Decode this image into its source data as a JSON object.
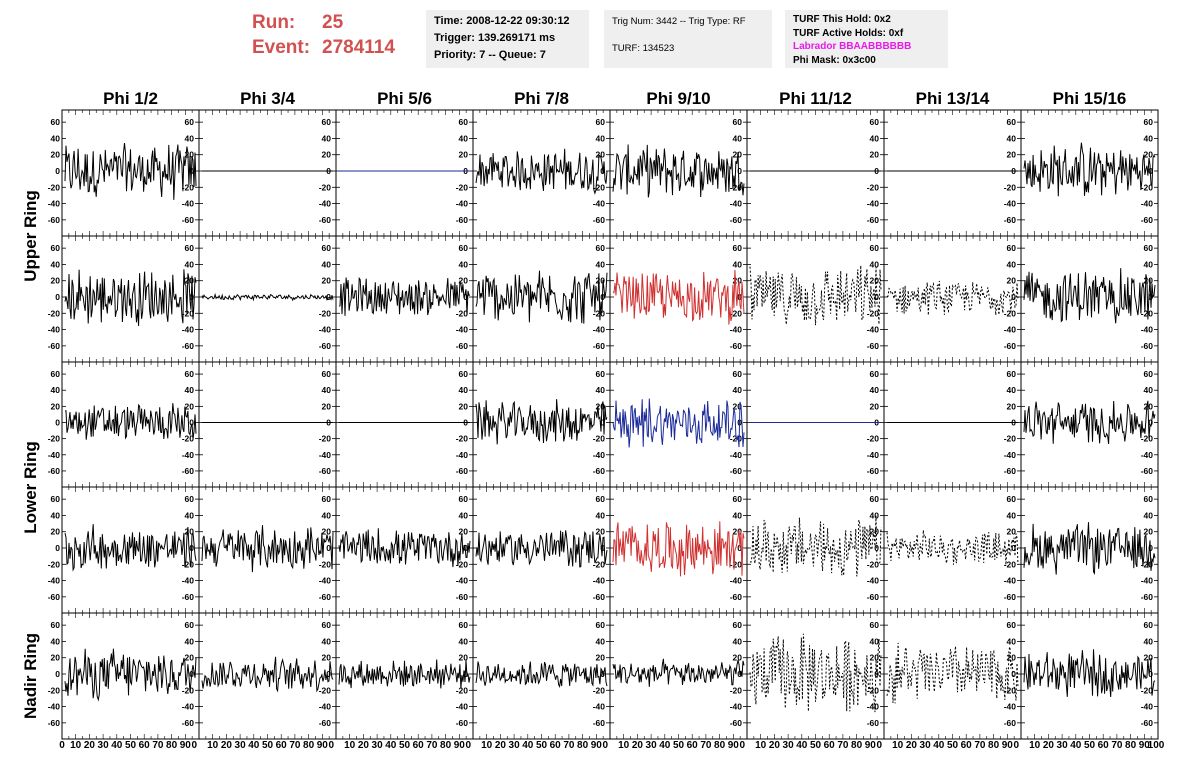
{
  "header": {
    "run_label": "Run:",
    "run_value": "25",
    "event_label": "Event:",
    "event_value": "2784114",
    "time": "Time: 2008-12-22 09:30:12",
    "trigger": "Trigger: 139.269171 ms",
    "priority": "Priority: 7 -- Queue: 7",
    "trig_num": "Trig Num: 3442 -- Trig Type: RF",
    "turf": "TURF: 134523",
    "turf_this_hold": "TURF This Hold: 0x2",
    "turf_active_holds": "TURF Active Holds: 0xf",
    "labrador": "Labrador BBAABBBBBB",
    "phi_mask": "Phi Mask: 0x3c00"
  },
  "colors": {
    "header_red": "#d35050",
    "labrador_magenta": "#e81aea",
    "trace_black": "#000000",
    "trace_red": "#d03030",
    "trace_blue": "#1a2a9a",
    "info_bg": "#efefef"
  },
  "chart_data": {
    "type": "line",
    "columns": [
      "Phi 1/2",
      "Phi 3/4",
      "Phi 5/6",
      "Phi 7/8",
      "Phi 9/10",
      "Phi 11/12",
      "Phi 13/14",
      "Phi 15/16"
    ],
    "rows": [
      "Upper Ring",
      "Upper Ring",
      "Lower Ring",
      "Lower Ring",
      "Nadir Ring"
    ],
    "row_labels": [
      "Upper Ring",
      "Lower Ring",
      "Nadir Ring"
    ],
    "ylim": [
      -70,
      70
    ],
    "yticks": [
      -60,
      -40,
      -20,
      0,
      20,
      40,
      60
    ],
    "xlim": [
      0,
      100
    ],
    "xtick_labels": [
      "0",
      "10",
      "20",
      "30",
      "40",
      "50",
      "60",
      "70",
      "80",
      "90",
      "100"
    ],
    "xtick_labels_short": [
      "10",
      "20",
      "30",
      "40",
      "50",
      "60",
      "70",
      "80",
      "90"
    ],
    "panels": [
      [
        {
          "style": "solid",
          "color": "black",
          "amp": 20
        },
        {
          "style": "flat",
          "color": "black",
          "amp": 0
        },
        {
          "style": "flat",
          "color": "blue",
          "amp": 0
        },
        {
          "style": "solid",
          "color": "black",
          "amp": 16
        },
        {
          "style": "solid",
          "color": "black",
          "amp": 18
        },
        {
          "style": "flat",
          "color": "black",
          "amp": 0
        },
        {
          "style": "flat",
          "color": "black",
          "amp": 0
        },
        {
          "style": "solid",
          "color": "black",
          "amp": 20
        }
      ],
      [
        {
          "style": "solid",
          "color": "black",
          "amp": 20
        },
        {
          "style": "solid",
          "color": "black",
          "amp": 2
        },
        {
          "style": "solid",
          "color": "black",
          "amp": 14
        },
        {
          "style": "solid",
          "color": "black",
          "amp": 20
        },
        {
          "style": "solid",
          "color": "red",
          "amp": 18
        },
        {
          "style": "dashed",
          "color": "black",
          "amp": 22
        },
        {
          "style": "dashed",
          "color": "black",
          "amp": 12
        },
        {
          "style": "solid",
          "color": "black",
          "amp": 20
        }
      ],
      [
        {
          "style": "solid",
          "color": "black",
          "amp": 14
        },
        {
          "style": "flat",
          "color": "black",
          "amp": 0
        },
        {
          "style": "flat",
          "color": "black",
          "amp": 0
        },
        {
          "style": "solid",
          "color": "black",
          "amp": 16
        },
        {
          "style": "solid",
          "color": "blue",
          "amp": 18
        },
        {
          "style": "flat",
          "color": "blue",
          "amp": 0
        },
        {
          "style": "flat",
          "color": "black",
          "amp": 0
        },
        {
          "style": "solid",
          "color": "black",
          "amp": 16
        }
      ],
      [
        {
          "style": "solid",
          "color": "black",
          "amp": 16
        },
        {
          "style": "solid",
          "color": "black",
          "amp": 16
        },
        {
          "style": "solid",
          "color": "black",
          "amp": 14
        },
        {
          "style": "solid",
          "color": "black",
          "amp": 14
        },
        {
          "style": "solid",
          "color": "red",
          "amp": 20
        },
        {
          "style": "dashed",
          "color": "black",
          "amp": 22
        },
        {
          "style": "dashed",
          "color": "black",
          "amp": 12
        },
        {
          "style": "solid",
          "color": "black",
          "amp": 18
        }
      ],
      [
        {
          "style": "solid",
          "color": "black",
          "amp": 18
        },
        {
          "style": "solid",
          "color": "black",
          "amp": 12
        },
        {
          "style": "solid",
          "color": "black",
          "amp": 10
        },
        {
          "style": "solid",
          "color": "black",
          "amp": 10
        },
        {
          "style": "solid",
          "color": "black",
          "amp": 10
        },
        {
          "style": "dashed",
          "color": "black",
          "amp": 28
        },
        {
          "style": "dashed",
          "color": "black",
          "amp": 22
        },
        {
          "style": "solid",
          "color": "black",
          "amp": 16
        }
      ]
    ]
  }
}
